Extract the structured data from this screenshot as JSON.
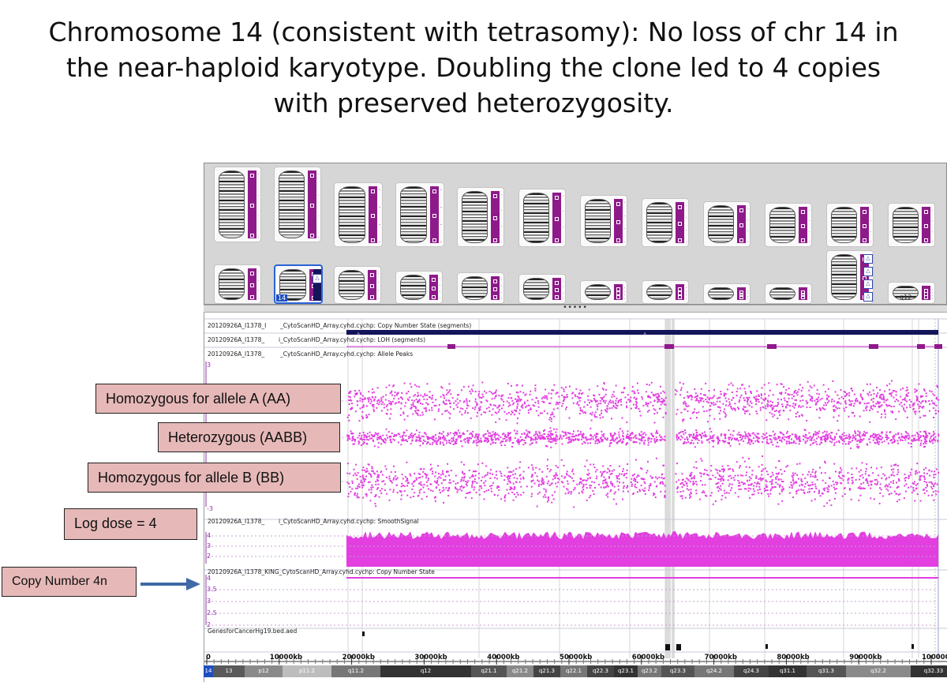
{
  "slide": {
    "title_lines": [
      "Chromosome 14 (consistent with tetrasomy): No loss of chr 14 in",
      "the near-haploid karyotype. Doubling the clone led to 4 copies",
      "with preserved heterozygosity."
    ]
  },
  "karyogram": {
    "selected_label": "14",
    "pane_splitter": "•••••",
    "last_cell_label": "q12"
  },
  "tracks": {
    "cn_state_segments": {
      "label_a": "20120926A_I1378_I",
      "label_b": "_CytoScanHD_Array.cyhd.cychp: Copy Number State (segments)"
    },
    "loh_segments": {
      "label_a": "20120926A_I1378_",
      "label_b": "i_CytoScanHD_Array.cyhd.cychp: LOH (segments)"
    },
    "allele_peaks": {
      "label_a": "20120926A_I1378_",
      "label_b": "_CytoScanHD_Array.cyhd.cychp: Allele Peaks",
      "y_top": "3",
      "y_bottom": "-3"
    },
    "smooth_signal": {
      "label_a": "20120926A_I1378_",
      "label_b": "i_CytoScanHD_Array.cyhd.cychp: SmoothSignal",
      "y_ticks": [
        "4",
        "3",
        "2"
      ]
    },
    "copy_number_state": {
      "label": "20120926A_I1378_KING_CytoScanHD_Array.cyhd.cychp: Copy Number State",
      "y_ticks": [
        "4",
        "3.5",
        "3",
        "2.5",
        "2"
      ]
    },
    "genes_for_cancer": {
      "label": "GenesforCancerHg19.bed.aed"
    }
  },
  "callouts": {
    "aa": "Homozygous for allele A (AA)",
    "aabb": "Heterozygous (AABB)",
    "bb": "Homozygous for allele B (BB)",
    "log_dose": "Log dose = 4",
    "copy_number": "Copy Number 4n"
  },
  "ruler": {
    "ticks": [
      "0",
      "10000kb",
      "20000kb",
      "30000kb",
      "40000kb",
      "50000kb",
      "60000kb",
      "70000kb",
      "80000kb",
      "90000kb",
      "100000kb"
    ]
  },
  "ideogram": {
    "chrom": "14",
    "bands": [
      "13",
      "p12",
      "p11.2",
      "q11.2",
      "q12",
      "q21.1",
      "q21.2",
      "q21.3",
      "q22.1",
      "q22.3",
      "q23.1",
      "q23.2",
      "q23.3",
      "q24.2",
      "q24.3",
      "q31.1",
      "q31.3",
      "q32.2",
      "q32.33"
    ]
  },
  "colors": {
    "accent_magenta": "#e23ee0",
    "loh_purple": "#8e1a8a",
    "segment_navy": "#14145a",
    "callout_fill": "#e6b9b8",
    "arrow_blue": "#3f6aa6"
  }
}
